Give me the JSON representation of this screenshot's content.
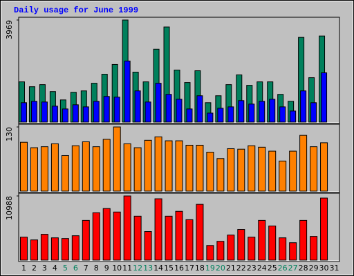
{
  "chart_data": [
    {
      "type": "bar",
      "title": "Daily usage for June 1999",
      "series": [
        {
          "color": "#00805c",
          "values": [
            1566,
            1377,
            1458,
            1188,
            864,
            1161,
            1215,
            1512,
            1863,
            2241,
            3969,
            1944,
            1566,
            2835,
            3699,
            2025,
            1539,
            1998,
            756,
            1026,
            1458,
            1836,
            1431,
            1566,
            1566,
            1080,
            810,
            3294,
            1728,
            3348,
            null
          ]
        },
        {
          "color": "#0000ff",
          "values": [
            756,
            810,
            783,
            621,
            513,
            675,
            594,
            810,
            999,
            972,
            2376,
            1215,
            783,
            1512,
            1080,
            891,
            513,
            1026,
            351,
            540,
            594,
            837,
            702,
            810,
            891,
            594,
            432,
            1215,
            756,
            1917,
            null
          ]
        }
      ],
      "ylim": [
        0,
        3969
      ],
      "yticks": [
        3969
      ]
    },
    {
      "type": "bar",
      "series": [
        {
          "color": "#ff8000",
          "values": [
            99,
            88,
            90,
            96,
            72,
            92,
            100,
            90,
            105,
            130,
            96,
            88,
            103,
            110,
            102,
            102,
            93,
            93,
            79,
            66,
            86,
            85,
            92,
            89,
            81,
            61,
            81,
            113,
            90,
            98,
            null
          ]
        }
      ],
      "ylim": [
        0,
        130
      ],
      "yticks": [
        130
      ]
    },
    {
      "type": "bar",
      "series": [
        {
          "color": "#ff0000",
          "values": [
            3941,
            3464,
            4419,
            3822,
            3702,
            4180,
            6808,
            8121,
            8838,
            8241,
            10988,
            7524,
            4897,
            10510,
            7524,
            8360,
            6927,
            9555,
            2508,
            3225,
            4300,
            5255,
            3941,
            6808,
            5852,
            3822,
            2986,
            6808,
            4061,
            10630,
            null
          ]
        }
      ],
      "ylim": [
        0,
        10988
      ],
      "yticks": [
        10988
      ],
      "categories": [
        "1",
        "2",
        "3",
        "4",
        "5",
        "6",
        "7",
        "8",
        "9",
        "10",
        "11",
        "12",
        "13",
        "14",
        "15",
        "16",
        "17",
        "18",
        "19",
        "20",
        "21",
        "22",
        "23",
        "24",
        "25",
        "26",
        "27",
        "28",
        "29",
        "30",
        "31"
      ],
      "category_colors": [
        "#000000",
        "#000000",
        "#000000",
        "#000000",
        "#00805c",
        "#00805c",
        "#000000",
        "#000000",
        "#000000",
        "#000000",
        "#000000",
        "#00805c",
        "#00805c",
        "#000000",
        "#000000",
        "#000000",
        "#000000",
        "#000000",
        "#00805c",
        "#00805c",
        "#000000",
        "#000000",
        "#000000",
        "#000000",
        "#000000",
        "#00805c",
        "#00805c",
        "#000000",
        "#000000",
        "#000000",
        "#000000"
      ]
    }
  ]
}
